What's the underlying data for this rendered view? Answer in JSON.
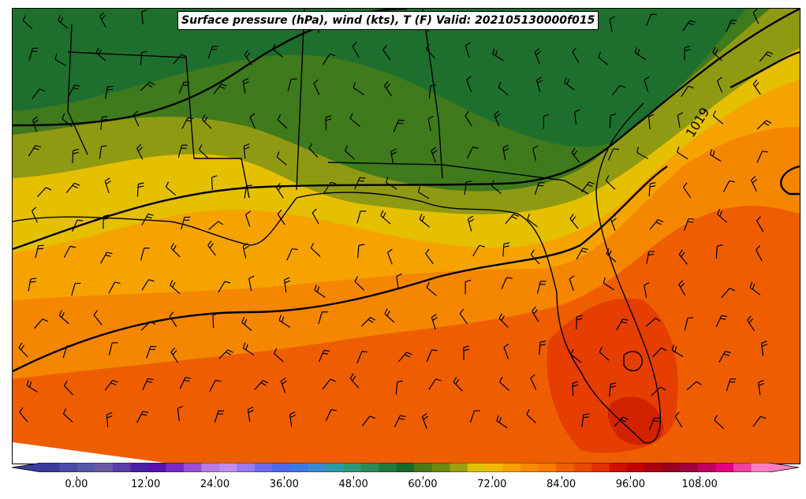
{
  "title": "Surface pressure (hPa), wind (kts), T (F) Valid: 202105130000f015",
  "isobar_labels": [
    "1019"
  ],
  "colorbar": {
    "tick_labels": [
      "0.00",
      "12.00",
      "24.00",
      "36.00",
      "48.00",
      "60.00",
      "72.00",
      "84.00",
      "96.00",
      "108.00"
    ],
    "tick_values": [
      0,
      12,
      24,
      36,
      48,
      60,
      72,
      84,
      96,
      108
    ],
    "min": -6,
    "max": 120,
    "colors": [
      "#3b3b9e",
      "#4a4aa8",
      "#5858a8",
      "#6a5aa8",
      "#5a3fa8",
      "#4a1fa8",
      "#5a10b0",
      "#7a28c8",
      "#9a50d8",
      "#b87ae8",
      "#c08cf0",
      "#9a7af0",
      "#6a6af0",
      "#4a6af0",
      "#3a7ae8",
      "#3a8ad8",
      "#2a9aa8",
      "#2a9a78",
      "#2a8a58",
      "#1e7a3e",
      "#156a2a",
      "#4a7a1a",
      "#6a8a12",
      "#9aa010",
      "#e0c000",
      "#f0b800",
      "#f8a000",
      "#f88a00",
      "#f87800",
      "#f06000",
      "#e84a00",
      "#e03000",
      "#d01000",
      "#c00000",
      "#a80010",
      "#980020",
      "#a00040",
      "#c00060",
      "#e00080",
      "#f040a0",
      "#f880c0"
    ]
  },
  "map": {
    "temperature_bands": [
      {
        "level": "55-60",
        "color": "#1e7a3e"
      },
      {
        "level": "58-60",
        "color": "#156a2a"
      },
      {
        "level": "60-62",
        "color": "#4a7a1a"
      },
      {
        "level": "62-64",
        "color": "#6a8a12"
      },
      {
        "level": "64-66",
        "color": "#9aa010"
      },
      {
        "level": "66-70",
        "color": "#e0c000"
      },
      {
        "level": "70-72",
        "color": "#f0b800"
      },
      {
        "level": "72-74",
        "color": "#f8a000"
      },
      {
        "level": "74-78",
        "color": "#f88a00"
      },
      {
        "level": "78-80",
        "color": "#f87000"
      },
      {
        "level": "80-84",
        "color": "#e84a00"
      },
      {
        "level": "84-90",
        "color": "#d82a00"
      },
      {
        "level": "90+",
        "color": "#c00000"
      }
    ]
  }
}
